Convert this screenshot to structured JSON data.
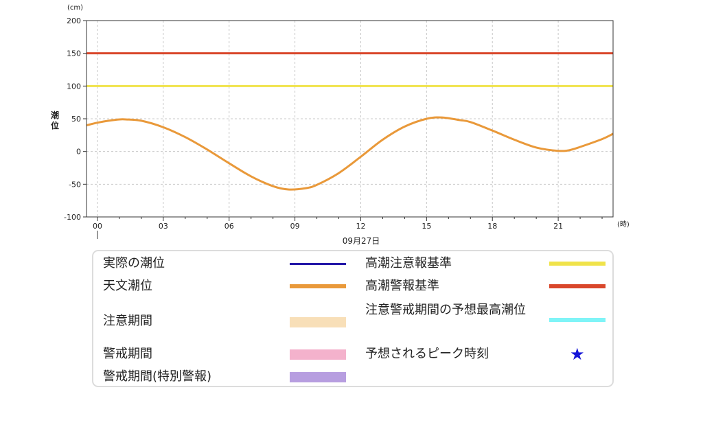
{
  "chart_data": {
    "type": "line",
    "yunit": "(cm)",
    "xunit": "(時)",
    "ylabel": "潮位",
    "date_label": "09月27日",
    "ylim": [
      -100,
      200
    ],
    "yticks": [
      200,
      150,
      100,
      50,
      0,
      -50,
      -100
    ],
    "xlim": [
      -0.5,
      23.5
    ],
    "xticks": [
      {
        "h": 0,
        "label": "00"
      },
      {
        "h": 3,
        "label": "03"
      },
      {
        "h": 6,
        "label": "06"
      },
      {
        "h": 9,
        "label": "09"
      },
      {
        "h": 12,
        "label": "12"
      },
      {
        "h": 15,
        "label": "15"
      },
      {
        "h": 18,
        "label": "18"
      },
      {
        "h": 21,
        "label": "21"
      }
    ],
    "grid": true,
    "series": [
      {
        "name": "天文潮位",
        "color": "#e9993a",
        "x": [
          -0.5,
          0,
          0.5,
          1,
          1.3,
          2,
          3,
          4,
          5,
          6,
          7,
          8,
          8.7,
          9.5,
          10,
          11,
          12,
          13,
          14,
          15,
          15.7,
          16.5,
          17,
          18,
          19,
          20,
          21,
          21.5,
          22,
          23,
          23.5
        ],
        "y": [
          40,
          44,
          47,
          49,
          49,
          47,
          37,
          22,
          3,
          -18,
          -38,
          -53,
          -58,
          -56,
          -51,
          -33,
          -8,
          18,
          38,
          50,
          52,
          48,
          45,
          32,
          18,
          6,
          1,
          2,
          7,
          19,
          27
        ]
      },
      {
        "name": "高潮注意報基準",
        "color": "#f0e34a",
        "x": [
          -0.5,
          23.5
        ],
        "y": [
          100,
          100
        ]
      },
      {
        "name": "高潮警報基準",
        "color": "#d9472b",
        "x": [
          -0.5,
          23.5
        ],
        "y": [
          150,
          150
        ]
      }
    ]
  },
  "legend": [
    {
      "label": "実際の潮位",
      "kind": "line",
      "color": "#2418a8"
    },
    {
      "label": "天文潮位",
      "kind": "line",
      "color": "#e9993a"
    },
    {
      "label": "注意期間",
      "kind": "box",
      "color": "#f8dfb8"
    },
    {
      "label": "警戒期間",
      "kind": "box",
      "color": "#f4b2cc"
    },
    {
      "label": "警戒期間(特別警報)",
      "kind": "box",
      "color": "#b79ee0"
    },
    {
      "label": "高潮注意報基準",
      "kind": "line",
      "color": "#f0e34a"
    },
    {
      "label": "高潮警報基準",
      "kind": "line",
      "color": "#d9472b"
    },
    {
      "label": "注意警戒期間の予想最高潮位",
      "kind": "line",
      "color": "#7ff4f7"
    },
    {
      "label": "予想されるピーク時刻",
      "kind": "star",
      "color": "#1515d8",
      "symbol": "★"
    }
  ]
}
